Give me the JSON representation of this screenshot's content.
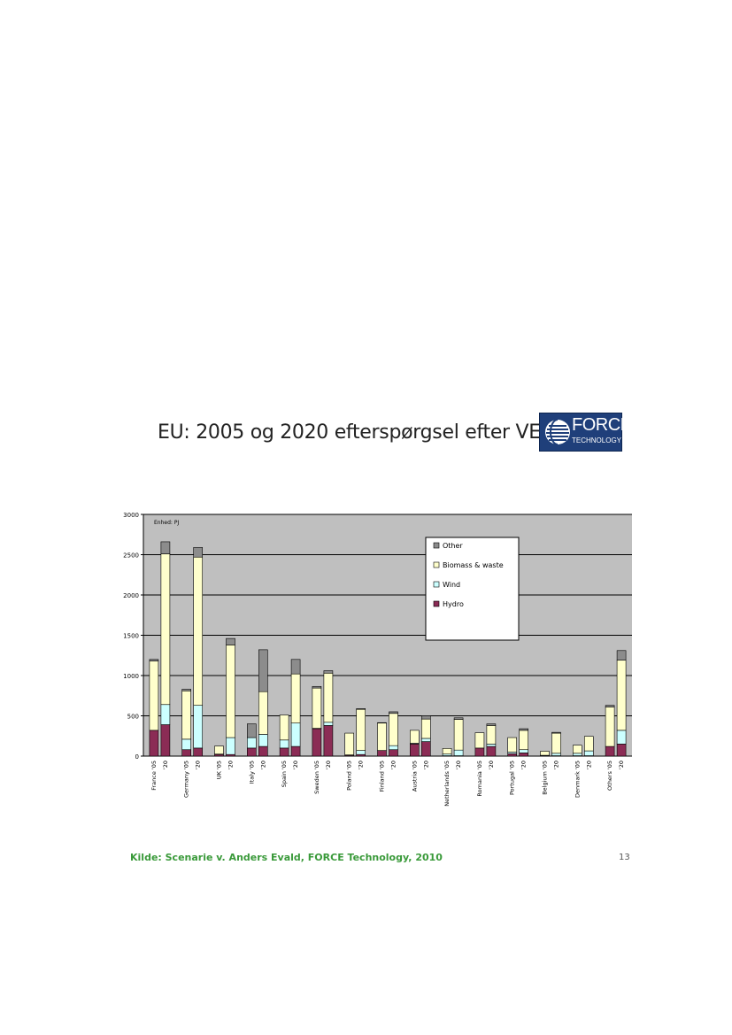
{
  "slide": {
    "title": "EU: 2005 og 2020 efterspørgsel efter VE",
    "logo_word": "FORCE",
    "logo_sub": "TECHNOLOGY",
    "source": "Kilde: Scenarie v. Anders Evald, FORCE Technology, 2010",
    "page_number": "13"
  },
  "colors": {
    "Hydro": "#8b2c55",
    "Wind": "#ccffff",
    "Biomass & waste": "#ffffcc",
    "Other": "#8c8c8c",
    "plot_bg": "#bfbfbf",
    "title_text": "#222222",
    "source_text": "#3a9a3a"
  },
  "chart_data": {
    "type": "bar",
    "stacked": true,
    "unit_label": "Enhed: PJ",
    "ylim": [
      0,
      3000
    ],
    "yticks": [
      0,
      500,
      1000,
      1500,
      2000,
      2500,
      3000
    ],
    "grid": true,
    "legend_position": "top-right",
    "legend_order": [
      "Other",
      "Biomass & waste",
      "Wind",
      "Hydro"
    ],
    "countries": [
      "France",
      "Germany",
      "UK",
      "Italy",
      "Spain",
      "Sweden",
      "Poland",
      "Finland",
      "Austria",
      "Netherlands",
      "Romania",
      "Portugal",
      "Belgium",
      "Denmark",
      "Others"
    ],
    "categories": [
      "France '05",
      "'20",
      "Germany '05",
      "'20",
      "UK '05",
      "'20",
      "Italy '05",
      "'20",
      "Spain '05",
      "'20",
      "Sweden '05",
      "'20",
      "Poland '05",
      "'20",
      "Finland '05",
      "'20",
      "Austria '05",
      "'20",
      "Netherlands '05",
      "'20",
      "Romania '05",
      "'20",
      "Portugal '05",
      "'20",
      "Belgium '05",
      "'20",
      "Denmark '05",
      "'20",
      "Others '05",
      "'20"
    ],
    "series": [
      {
        "name": "Hydro",
        "values": [
          320,
          390,
          80,
          100,
          20,
          20,
          100,
          120,
          100,
          120,
          340,
          380,
          10,
          20,
          70,
          80,
          150,
          180,
          5,
          5,
          100,
          120,
          30,
          40,
          5,
          5,
          5,
          5,
          120,
          150
        ]
      },
      {
        "name": "Wind",
        "values": [
          0,
          250,
          130,
          530,
          5,
          210,
          130,
          150,
          100,
          290,
          5,
          40,
          5,
          50,
          0,
          50,
          10,
          40,
          20,
          70,
          0,
          30,
          20,
          40,
          5,
          30,
          30,
          60,
          0,
          170
        ]
      },
      {
        "name": "Biomass & waste",
        "values": [
          860,
          1870,
          600,
          1840,
          100,
          1150,
          0,
          530,
          310,
          610,
          500,
          610,
          270,
          510,
          340,
          400,
          160,
          240,
          70,
          380,
          190,
          230,
          180,
          240,
          50,
          250,
          100,
          180,
          490,
          870
        ]
      },
      {
        "name": "Other",
        "values": [
          20,
          150,
          20,
          120,
          0,
          80,
          170,
          520,
          0,
          180,
          20,
          30,
          0,
          10,
          5,
          20,
          0,
          40,
          0,
          20,
          0,
          20,
          0,
          20,
          0,
          10,
          0,
          0,
          20,
          120
        ]
      }
    ]
  }
}
